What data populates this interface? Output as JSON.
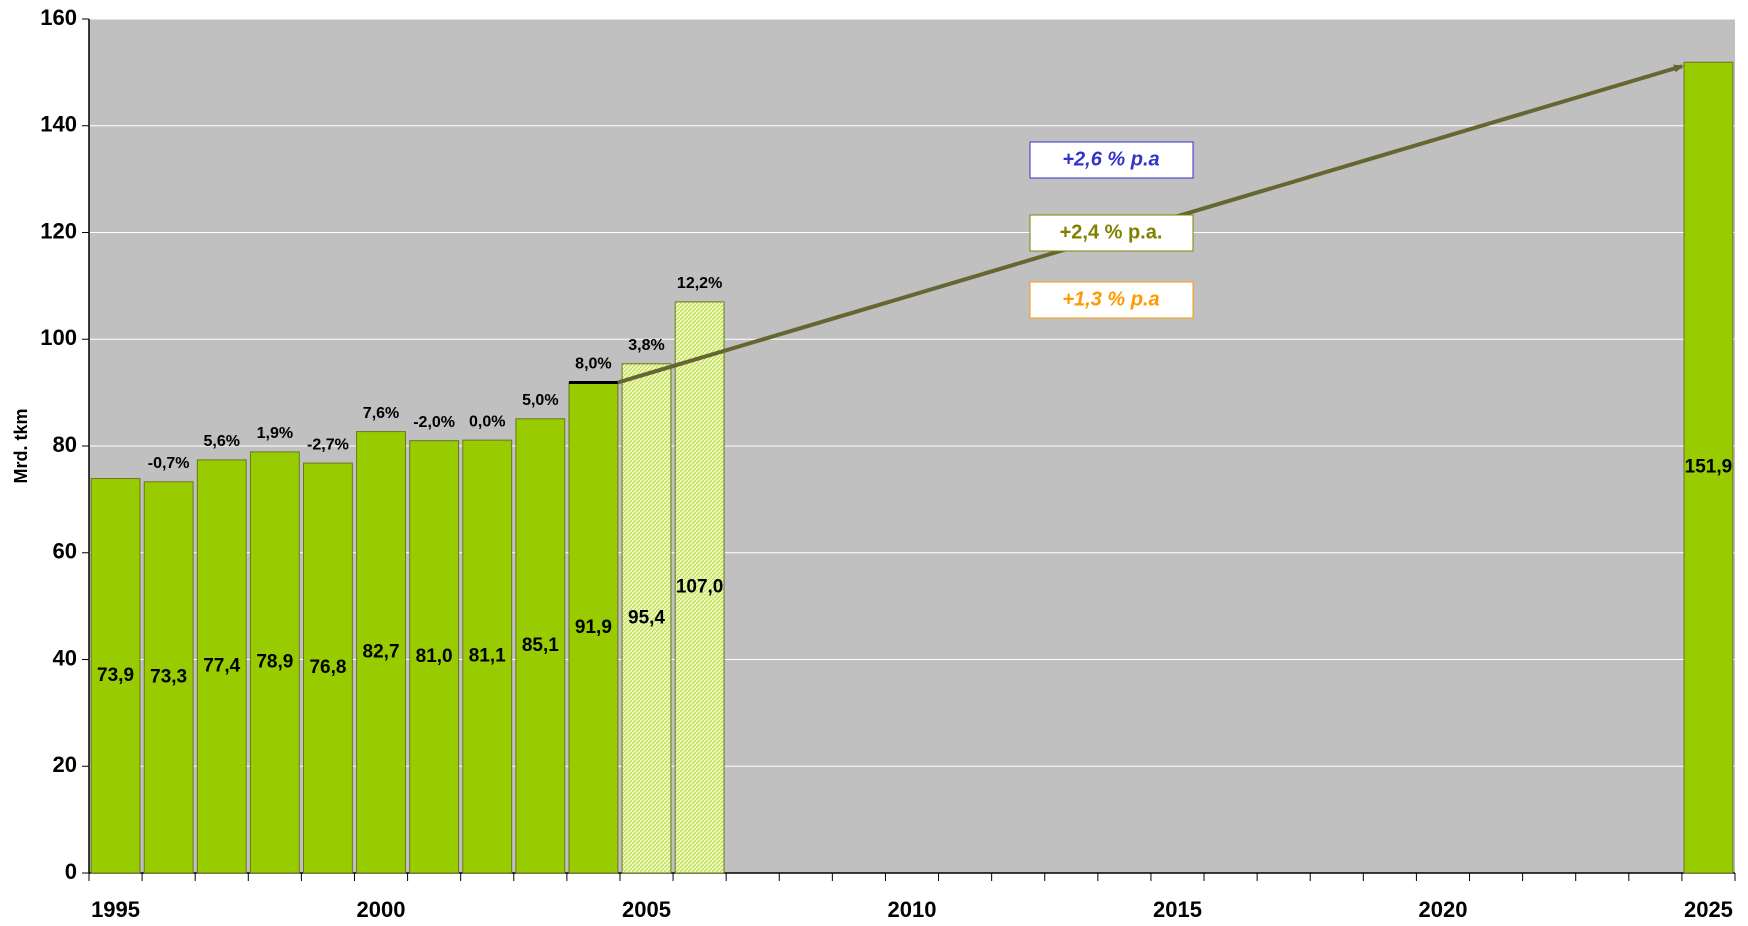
{
  "chart_data": {
    "type": "bar",
    "y_label": "Mrd. tkm",
    "x": [
      1995,
      1996,
      1997,
      1998,
      1999,
      2000,
      2001,
      2002,
      2003,
      2004,
      2005,
      2006,
      2025
    ],
    "values": [
      73.9,
      73.3,
      77.4,
      78.9,
      76.8,
      82.7,
      81.0,
      81.1,
      85.1,
      91.9,
      95.4,
      107.0,
      151.9
    ],
    "value_labels": [
      "73,9",
      "73,3",
      "77,4",
      "78,9",
      "76,8",
      "82,7",
      "81,0",
      "81,1",
      "85,1",
      "91,9",
      "95,4",
      "107,0",
      "151,9"
    ],
    "growth_labels": [
      null,
      "-0,7%",
      "5,6%",
      "1,9%",
      "-2,7%",
      "7,6%",
      "-2,0%",
      "0,0%",
      "5,0%",
      "8,0%",
      "3,8%",
      "12,2%",
      null
    ],
    "fills": [
      "solid",
      "solid",
      "solid",
      "solid",
      "solid",
      "solid",
      "solid",
      "solid",
      "solid",
      "solid",
      "hatched",
      "hatched",
      "solid"
    ],
    "color": "#99cc00",
    "hatch_color": "#ddf08a",
    "plot_background": "#c0c0c0",
    "grid": true,
    "xlim": [
      1994.5,
      2025.5
    ],
    "xticks": [
      1995,
      2000,
      2005,
      2010,
      2015,
      2020,
      2025
    ],
    "ylim": [
      0,
      160
    ],
    "yticks": [
      0,
      20,
      40,
      60,
      80,
      100,
      120,
      140,
      160
    ],
    "trend_color": "#666633",
    "annotations": [
      {
        "text": "+2,6 % p.a",
        "color": "#3333cc",
        "italic": true
      },
      {
        "text": "+2,4 % p.a.",
        "color": "#808000",
        "italic": false
      },
      {
        "text": "+1,3 % p.a",
        "color": "#ff9900",
        "italic": true
      }
    ]
  }
}
